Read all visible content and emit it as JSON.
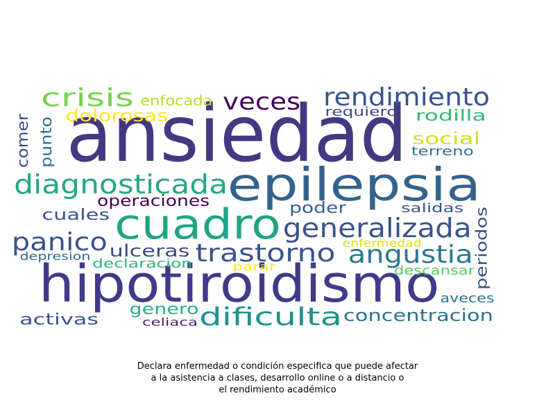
{
  "words": [
    {
      "text": "ansiedad",
      "color": "#453781"
    },
    {
      "text": "hipotiroidismo",
      "color": "#3f3a8a"
    },
    {
      "text": "epilepsia",
      "color": "#33638d"
    },
    {
      "text": "cuadro",
      "color": "#20a386"
    },
    {
      "text": "diagnosticada",
      "color": "#26a784"
    },
    {
      "text": "generalizada",
      "color": "#3b528b"
    },
    {
      "text": "rendimiento",
      "color": "#3a548c"
    },
    {
      "text": "trastorno",
      "color": "#3b528b"
    },
    {
      "text": "angustia",
      "color": "#2a788e"
    },
    {
      "text": "dificulta",
      "color": "#21918c"
    },
    {
      "text": "panico",
      "color": "#3b528b"
    },
    {
      "text": "crisis",
      "color": "#7ad151"
    },
    {
      "text": "veces",
      "color": "#440154"
    },
    {
      "text": "concentracion",
      "color": "#2c728e"
    },
    {
      "text": "social",
      "color": "#d2e21b"
    },
    {
      "text": "dolorosas",
      "color": "#fde725"
    },
    {
      "text": "ulceras",
      "color": "#3e4989"
    },
    {
      "text": "operaciones",
      "color": "#440154"
    },
    {
      "text": "poder",
      "color": "#35608d"
    },
    {
      "text": "cuales",
      "color": "#3b528b"
    },
    {
      "text": "activas",
      "color": "#3b528b"
    },
    {
      "text": "genero",
      "color": "#29af7f"
    },
    {
      "text": "periodos",
      "color": "#3b528b"
    },
    {
      "text": "rodilla",
      "color": "#35b779"
    },
    {
      "text": "comer",
      "color": "#3e4989"
    },
    {
      "text": "punto",
      "color": "#2c728e"
    },
    {
      "text": "enfocada",
      "color": "#b5de2b"
    },
    {
      "text": "requiero",
      "color": "#3e4989"
    },
    {
      "text": "terreno",
      "color": "#2c728e"
    },
    {
      "text": "salidas",
      "color": "#3b528b"
    },
    {
      "text": "enfermedad",
      "color": "#d8e219"
    },
    {
      "text": "declaracion",
      "color": "#2fb47c"
    },
    {
      "text": "parar",
      "color": "#fde725"
    },
    {
      "text": "descansar",
      "color": "#5ec962"
    },
    {
      "text": "depresion",
      "color": "#31688e"
    },
    {
      "text": "aveces",
      "color": "#2c728e"
    },
    {
      "text": "celiaca",
      "color": "#481f70"
    }
  ],
  "caption": {
    "line1": "Declara enfermedad o condición especifica que puede afectar",
    "line2": "a la asistencia a clases, desarrollo online o a distancio o",
    "line3": "el rendimiento académico"
  }
}
